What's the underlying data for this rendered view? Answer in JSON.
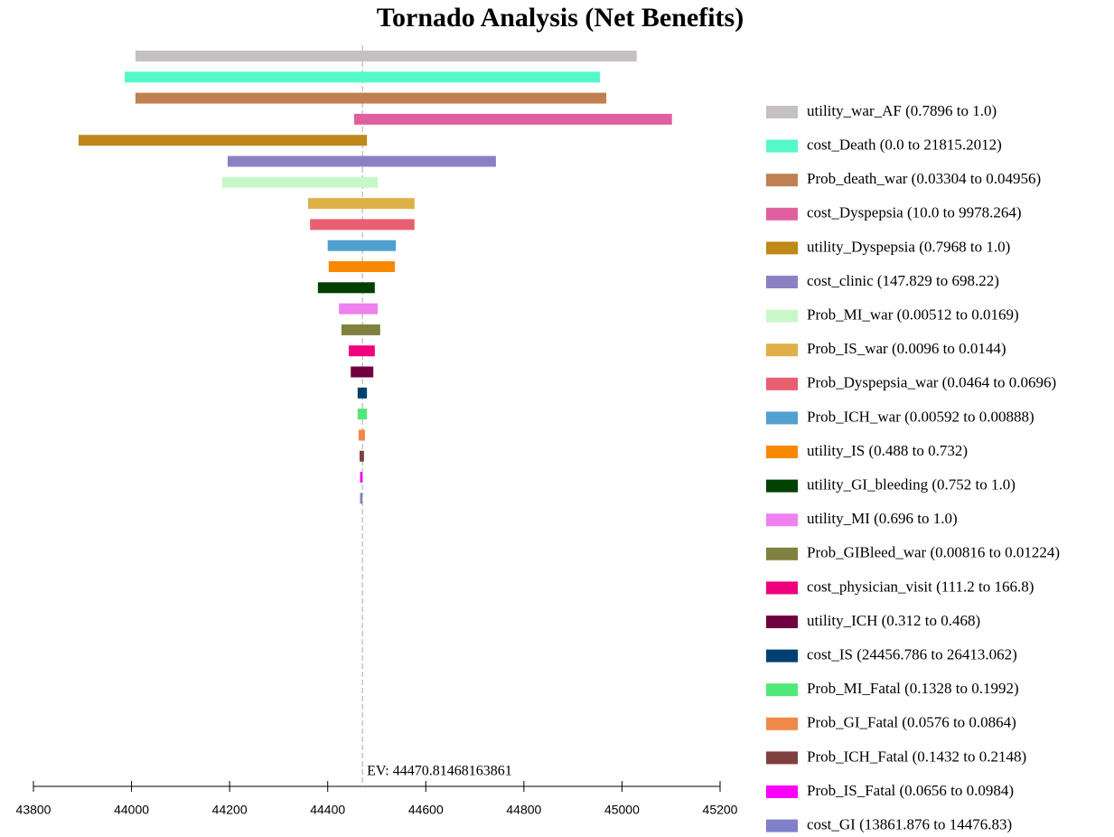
{
  "chart_data": {
    "type": "tornado",
    "title": "Tornado Analysis (Net Benefits)",
    "xlim": [
      43800,
      45200
    ],
    "xticks": [
      43800,
      44000,
      44200,
      44400,
      44600,
      44800,
      45000,
      45200
    ],
    "ev": 44470.81468163861,
    "ev_label": "EV: 44470.81468163861",
    "bars": [
      {
        "name": "utility_war_AF (0.7896 to 1.0)",
        "color": "#c4c0c4",
        "low": 44008,
        "high": 45030
      },
      {
        "name": "cost_Death (0.0 to 21815.2012)",
        "color": "#55f8c8",
        "low": 43986,
        "high": 44955
      },
      {
        "name": "Prob_death_war (0.03304 to 0.04956)",
        "color": "#c0804f",
        "low": 44008,
        "high": 44968
      },
      {
        "name": "cost_Dyspepsia (10.0 to 9978.264)",
        "color": "#e0609f",
        "low": 44454,
        "high": 45102
      },
      {
        "name": "utility_Dyspepsia (0.7968 to 1.0)",
        "color": "#c08818",
        "low": 43892,
        "high": 44480
      },
      {
        "name": "cost_clinic (147.829 to 698.22)",
        "color": "#8c80c4",
        "low": 44196,
        "high": 44743
      },
      {
        "name": "Prob_MI_war (0.00512 to 0.0169)",
        "color": "#c8f8c8",
        "low": 44185,
        "high": 44502
      },
      {
        "name": "Prob_IS_war (0.0096 to 0.0144)",
        "color": "#e0b048",
        "low": 44360,
        "high": 44577
      },
      {
        "name": "Prob_Dyspepsia_war (0.0464 to 0.0696)",
        "color": "#e86070",
        "low": 44364,
        "high": 44577
      },
      {
        "name": "Prob_ICH_war (0.00592 to 0.00888)",
        "color": "#50a0d0",
        "low": 44400,
        "high": 44539
      },
      {
        "name": "utility_IS (0.488 to 0.732)",
        "color": "#f88800",
        "low": 44402,
        "high": 44537
      },
      {
        "name": "utility_GI_bleeding (0.752 to 1.0)",
        "color": "#004000",
        "low": 44380,
        "high": 44496
      },
      {
        "name": "utility_MI (0.696 to 1.0)",
        "color": "#f080f0",
        "low": 44423,
        "high": 44502
      },
      {
        "name": "Prob_GIBleed_war (0.00816 to 0.01224)",
        "color": "#808040",
        "low": 44428,
        "high": 44507
      },
      {
        "name": "cost_physician_visit (111.2 to 166.8)",
        "color": "#f0007c",
        "low": 44443,
        "high": 44496
      },
      {
        "name": "utility_ICH (0.312 to 0.468)",
        "color": "#700040",
        "low": 44447,
        "high": 44493
      },
      {
        "name": "cost_IS (24456.786 to 26413.062)",
        "color": "#004070",
        "low": 44461,
        "high": 44480
      },
      {
        "name": "Prob_MI_Fatal (0.1328 to 0.1992)",
        "color": "#50e878",
        "low": 44461,
        "high": 44480
      },
      {
        "name": "Prob_GI_Fatal (0.0576 to 0.0864)",
        "color": "#f08848",
        "low": 44463,
        "high": 44476
      },
      {
        "name": "Prob_ICH_Fatal (0.1432 to 0.2148)",
        "color": "#804040",
        "low": 44465,
        "high": 44474
      },
      {
        "name": "Prob_IS_Fatal (0.0656 to 0.0984)",
        "color": "#f800f8",
        "low": 44466,
        "high": 44471
      },
      {
        "name": "cost_GI (13861.876 to 14476.83)",
        "color": "#8080c8",
        "low": 44466,
        "high": 44471
      }
    ]
  }
}
